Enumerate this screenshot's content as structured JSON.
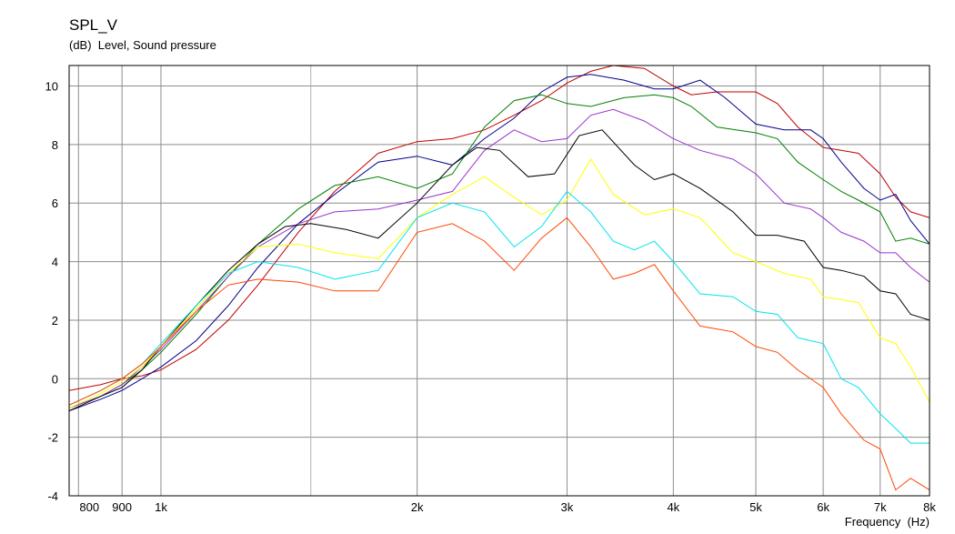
{
  "chart_data": {
    "type": "line",
    "title": "SPL_V",
    "subtitle": "(dB)  Level, Sound pressure",
    "xlabel": "Frequency  (Hz)",
    "xscale": "log",
    "xlim": [
      780,
      8000
    ],
    "ylim": [
      -4,
      10.7
    ],
    "grid": true,
    "x_ticks": [
      {
        "value": 800,
        "label": "800"
      },
      {
        "value": 900,
        "label": "900"
      },
      {
        "value": 1000,
        "label": "1k"
      },
      {
        "value": 2000,
        "label": "2k"
      },
      {
        "value": 3000,
        "label": "3k"
      },
      {
        "value": 4000,
        "label": "4k"
      },
      {
        "value": 5000,
        "label": "5k"
      },
      {
        "value": 6000,
        "label": "6k"
      },
      {
        "value": 7000,
        "label": "7k"
      },
      {
        "value": 8000,
        "label": "8k"
      }
    ],
    "x_minor_grid": [
      1500
    ],
    "y_ticks": [
      10,
      8,
      6,
      4,
      2,
      0,
      -2,
      -4
    ],
    "series": [
      {
        "color": "#c00000",
        "x": [
          780,
          850,
          900,
          950,
          1000,
          1100,
          1200,
          1300,
          1450,
          1600,
          1800,
          2000,
          2200,
          2400,
          2600,
          2800,
          3000,
          3200,
          3400,
          3700,
          4000,
          4200,
          4500,
          5000,
          5300,
          5600,
          6000,
          6300,
          6600,
          7000,
          7300,
          7600,
          8000
        ],
        "y": [
          -0.4,
          -0.2,
          0,
          0.1,
          0.3,
          1.0,
          2.0,
          3.2,
          5.0,
          6.4,
          7.7,
          8.1,
          8.2,
          8.5,
          9.0,
          9.5,
          10.1,
          10.5,
          10.7,
          10.6,
          10.0,
          9.7,
          9.8,
          9.8,
          9.4,
          8.6,
          7.9,
          7.8,
          7.7,
          7.0,
          6.2,
          5.7,
          5.5
        ]
      },
      {
        "color": "#00008b",
        "x": [
          780,
          850,
          900,
          950,
          1000,
          1100,
          1200,
          1300,
          1450,
          1600,
          1800,
          2000,
          2200,
          2400,
          2600,
          2800,
          3000,
          3200,
          3500,
          3800,
          4000,
          4300,
          4600,
          5000,
          5400,
          5800,
          6000,
          6300,
          6700,
          7000,
          7300,
          7600,
          8000
        ],
        "y": [
          -1.1,
          -0.7,
          -0.4,
          0,
          0.4,
          1.3,
          2.5,
          3.8,
          5.3,
          6.3,
          7.4,
          7.6,
          7.3,
          8.2,
          8.9,
          9.8,
          10.3,
          10.4,
          10.2,
          9.9,
          9.9,
          10.2,
          9.6,
          8.7,
          8.5,
          8.5,
          8.2,
          7.4,
          6.5,
          6.1,
          6.3,
          5.4,
          4.6
        ]
      },
      {
        "color": "#008000",
        "x": [
          780,
          850,
          900,
          950,
          1000,
          1100,
          1200,
          1300,
          1450,
          1600,
          1800,
          2000,
          2200,
          2400,
          2600,
          2800,
          3000,
          3200,
          3500,
          3800,
          4000,
          4200,
          4500,
          5000,
          5300,
          5600,
          6000,
          6300,
          6600,
          7000,
          7300,
          7600,
          8000
        ],
        "y": [
          -1.0,
          -0.6,
          -0.2,
          0.3,
          0.9,
          2.2,
          3.5,
          4.6,
          5.8,
          6.6,
          6.9,
          6.5,
          7.0,
          8.6,
          9.5,
          9.7,
          9.4,
          9.3,
          9.6,
          9.7,
          9.6,
          9.3,
          8.6,
          8.4,
          8.2,
          7.4,
          6.8,
          6.4,
          6.1,
          5.7,
          4.7,
          4.8,
          4.6
        ]
      },
      {
        "color": "#9932cc",
        "x": [
          780,
          850,
          900,
          950,
          1000,
          1100,
          1200,
          1300,
          1450,
          1600,
          1800,
          2000,
          2200,
          2400,
          2600,
          2800,
          3000,
          3200,
          3400,
          3700,
          4000,
          4300,
          4700,
          5000,
          5400,
          5800,
          6000,
          6300,
          6700,
          7000,
          7300,
          7600,
          8000
        ],
        "y": [
          -1.0,
          -0.6,
          -0.2,
          0.4,
          1.0,
          2.3,
          3.5,
          4.5,
          5.3,
          5.7,
          5.8,
          6.1,
          6.4,
          7.8,
          8.5,
          8.1,
          8.2,
          9.0,
          9.2,
          8.8,
          8.2,
          7.8,
          7.5,
          7.0,
          6.0,
          5.8,
          5.5,
          5.0,
          4.7,
          4.3,
          4.3,
          3.8,
          3.3
        ]
      },
      {
        "color": "#000000",
        "x": [
          780,
          850,
          900,
          950,
          1000,
          1100,
          1200,
          1300,
          1400,
          1500,
          1650,
          1800,
          2000,
          2200,
          2350,
          2500,
          2700,
          2900,
          3100,
          3300,
          3600,
          3800,
          4000,
          4300,
          4700,
          5000,
          5300,
          5700,
          6000,
          6300,
          6700,
          7000,
          7300,
          7600,
          8000
        ],
        "y": [
          -1.1,
          -0.6,
          -0.3,
          0.3,
          1.1,
          2.5,
          3.7,
          4.6,
          5.2,
          5.3,
          5.1,
          4.8,
          6.0,
          7.3,
          7.9,
          7.8,
          6.9,
          7.0,
          8.3,
          8.5,
          7.3,
          6.8,
          7.0,
          6.5,
          5.7,
          4.9,
          4.9,
          4.7,
          3.8,
          3.7,
          3.5,
          3.0,
          2.9,
          2.2,
          2.0
        ]
      },
      {
        "color": "#ffff00",
        "x": [
          780,
          850,
          900,
          950,
          1000,
          1100,
          1200,
          1300,
          1450,
          1600,
          1800,
          2000,
          2200,
          2400,
          2600,
          2800,
          3000,
          3200,
          3400,
          3700,
          4000,
          4300,
          4700,
          5000,
          5400,
          5800,
          6000,
          6300,
          6600,
          7000,
          7300,
          7600,
          8000
        ],
        "y": [
          -1.0,
          -0.5,
          -0.1,
          0.4,
          1.1,
          2.4,
          3.6,
          4.5,
          4.6,
          4.3,
          4.1,
          5.5,
          6.3,
          6.9,
          6.2,
          5.6,
          6.1,
          7.5,
          6.3,
          5.6,
          5.8,
          5.5,
          4.3,
          4.0,
          3.6,
          3.4,
          2.8,
          2.7,
          2.6,
          1.4,
          1.2,
          0.4,
          -0.8
        ]
      },
      {
        "color": "#00e5ee",
        "x": [
          780,
          850,
          900,
          950,
          1000,
          1100,
          1200,
          1300,
          1450,
          1600,
          1800,
          2000,
          2200,
          2400,
          2600,
          2800,
          3000,
          3200,
          3400,
          3600,
          3800,
          4000,
          4300,
          4700,
          5000,
          5300,
          5600,
          6000,
          6300,
          6600,
          7000,
          7300,
          7600,
          8000
        ],
        "y": [
          -0.9,
          -0.4,
          0,
          0.5,
          1.2,
          2.5,
          3.6,
          4.0,
          3.8,
          3.4,
          3.7,
          5.5,
          6.0,
          5.7,
          4.5,
          5.2,
          6.4,
          5.7,
          4.7,
          4.4,
          4.7,
          4.0,
          2.9,
          2.8,
          2.3,
          2.2,
          1.4,
          1.2,
          0.0,
          -0.3,
          -1.2,
          -1.7,
          -2.2,
          -2.2
        ]
      },
      {
        "color": "#ff4500",
        "x": [
          780,
          850,
          900,
          950,
          1000,
          1100,
          1200,
          1300,
          1450,
          1600,
          1800,
          2000,
          2200,
          2400,
          2600,
          2800,
          3000,
          3200,
          3400,
          3600,
          3800,
          4000,
          4300,
          4700,
          5000,
          5300,
          5600,
          6000,
          6300,
          6700,
          7000,
          7300,
          7600,
          8000
        ],
        "y": [
          -0.9,
          -0.4,
          0,
          0.5,
          1.1,
          2.3,
          3.2,
          3.4,
          3.3,
          3.0,
          3.0,
          5.0,
          5.3,
          4.7,
          3.7,
          4.8,
          5.5,
          4.5,
          3.4,
          3.6,
          3.9,
          3.0,
          1.8,
          1.6,
          1.1,
          0.9,
          0.3,
          -0.3,
          -1.2,
          -2.1,
          -2.4,
          -3.8,
          -3.4,
          -3.8
        ]
      }
    ]
  }
}
